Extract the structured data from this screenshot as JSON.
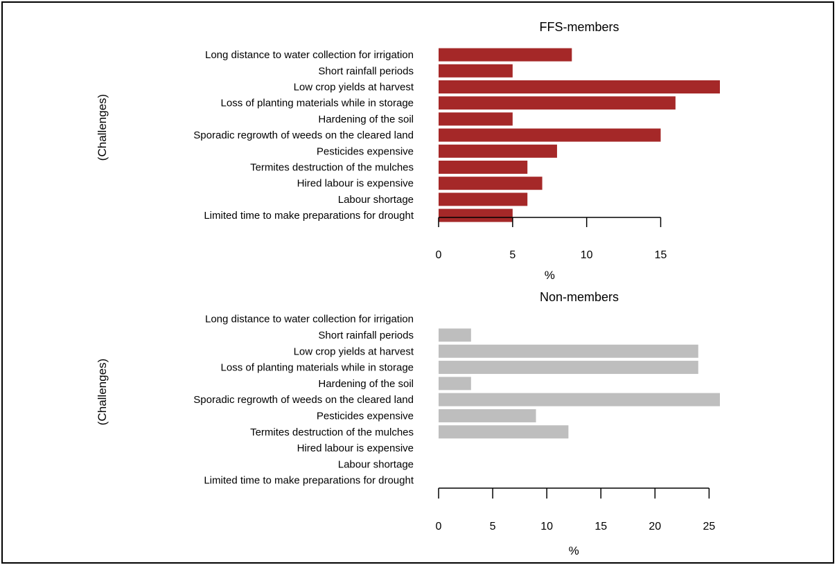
{
  "chart_data": [
    {
      "type": "bar",
      "orientation": "horizontal",
      "title": "FFS-members",
      "xlabel": "%",
      "ylabel": "(Challenges)",
      "xlim": [
        0,
        19
      ],
      "xticks": [
        0,
        5,
        10,
        15
      ],
      "bar_color": "#a52828",
      "categories": [
        "Long distance to water collection for irrigation",
        "Short rainfall periods",
        "Low crop yields at harvest",
        "Loss of planting materials while in storage",
        "Hardening of the soil",
        "Sporadic regrowth of weeds on the cleared land",
        "Pesticides expensive",
        "Termites destruction of the mulches",
        "Hired labour is expensive",
        "Labour shortage",
        "Limited time to make preparations for drought"
      ],
      "values": [
        9,
        5,
        19,
        16,
        5,
        15,
        8,
        6,
        7,
        6,
        5
      ]
    },
    {
      "type": "bar",
      "orientation": "horizontal",
      "title": "Non-members",
      "xlabel": "%",
      "ylabel": "(Challenges)",
      "xlim": [
        0,
        26
      ],
      "xticks": [
        0,
        5,
        10,
        15,
        20,
        25
      ],
      "bar_color": "#bebebe",
      "categories": [
        "Long distance to water collection for irrigation",
        "Short rainfall periods",
        "Low crop yields at harvest",
        "Loss of planting materials while in storage",
        "Hardening of the soil",
        "Sporadic regrowth of weeds on the cleared land",
        "Pesticides expensive",
        "Termites destruction of the mulches",
        "Hired labour is expensive",
        "Labour shortage",
        "Limited time to make preparations for drought"
      ],
      "values": [
        0,
        3,
        24,
        24,
        3,
        26,
        9,
        12,
        0,
        0,
        0
      ]
    }
  ]
}
